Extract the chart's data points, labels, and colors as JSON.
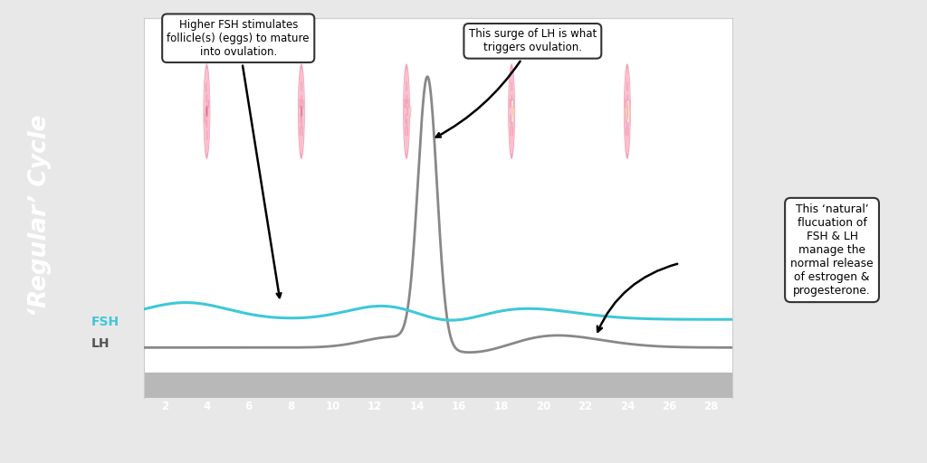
{
  "title": "‘Regular’ Cycle",
  "sidebar_color": "#f0265a",
  "plot_bg": "#ffffff",
  "outer_bg": "#e8e8e8",
  "x_ticks": [
    2,
    4,
    6,
    8,
    10,
    12,
    14,
    16,
    18,
    20,
    22,
    24,
    26,
    28
  ],
  "x_min": 1,
  "x_max": 29,
  "fsh_color": "#3ec8d8",
  "lh_color": "#888888",
  "annotation1_text": "Higher FSH stimulates\nfollicle(s) (eggs) to mature\ninto ovulation.",
  "annotation2_text": "This surge of LH is what\ntriggers ovulation.",
  "annotation3_text": "This ‘natural’\nflucuation of\nFSH & LH\nmanage the\nnormal release\nof estrogen &\nprogesterone.",
  "fsh_label": "FSH",
  "lh_label": "LH",
  "follicle_color": "#f5a0b8",
  "follicle_inner": "#f9c0ce",
  "follicle_spot": "#ffffff",
  "egg_orange": "#f0a030",
  "egg_blue": "#8090cc",
  "tick_gray": "#aaaaaa",
  "tickband_color": "#b8b8b8"
}
